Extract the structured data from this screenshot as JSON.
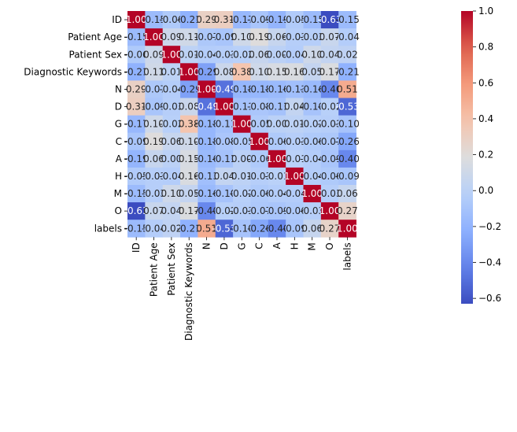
{
  "chart_data": {
    "type": "heatmap",
    "title": "",
    "xlabel": "",
    "ylabel": "",
    "rows": [
      "ID",
      "Patient Age",
      "Patient Sex",
      "Diagnostic Keywords",
      "N",
      "D",
      "G",
      "C",
      "A",
      "H",
      "M",
      "O",
      "labels"
    ],
    "cols": [
      "ID",
      "Patient Age",
      "Patient Sex",
      "Diagnostic Keywords",
      "N",
      "D",
      "G",
      "C",
      "A",
      "H",
      "M",
      "O",
      "labels"
    ],
    "values": [
      [
        1.0,
        -0.15,
        -0.06,
        -0.21,
        0.29,
        0.31,
        -0.17,
        -0.09,
        -0.19,
        -0.05,
        -0.15,
        -0.63,
        -0.15
      ],
      [
        -0.15,
        1.0,
        0.09,
        0.11,
        -0.07,
        -0.09,
        0.1,
        0.19,
        0.06,
        -0.03,
        -0.03,
        0.07,
        -0.04
      ],
      [
        -0.06,
        0.09,
        1.0,
        0.01,
        -0.04,
        -0.03,
        -0.02,
        0.06,
        -0.0,
        -0.04,
        0.1,
        0.04,
        0.02
      ],
      [
        -0.21,
        0.11,
        0.01,
        1.0,
        -0.29,
        0.08,
        0.38,
        0.1,
        0.15,
        0.16,
        0.05,
        0.17,
        -0.21
      ],
      [
        0.29,
        -0.07,
        -0.04,
        -0.29,
        1.0,
        -0.49,
        -0.18,
        -0.18,
        -0.16,
        -0.13,
        -0.16,
        -0.4,
        0.51
      ],
      [
        0.31,
        -0.09,
        -0.03,
        0.08,
        -0.49,
        1.0,
        -0.11,
        -0.08,
        -0.11,
        0.04,
        -0.1,
        -0.02,
        -0.53
      ],
      [
        -0.17,
        0.1,
        -0.02,
        0.38,
        -0.18,
        -0.11,
        1.0,
        -0.05,
        0.0,
        0.01,
        -0.02,
        -0.03,
        -0.1
      ],
      [
        -0.09,
        0.19,
        0.06,
        0.1,
        -0.18,
        -0.08,
        -0.05,
        1.0,
        -0.06,
        -0.03,
        -0.06,
        -0.07,
        -0.26
      ],
      [
        -0.19,
        0.06,
        -0.0,
        0.15,
        -0.16,
        -0.11,
        0.0,
        -0.06,
        1.0,
        -0.01,
        -0.04,
        -0.09,
        -0.4
      ],
      [
        -0.05,
        -0.03,
        -0.04,
        0.16,
        -0.13,
        0.04,
        0.01,
        -0.03,
        -0.01,
        1.0,
        -0.04,
        -0.06,
        -0.09
      ],
      [
        -0.15,
        -0.03,
        0.1,
        0.05,
        -0.16,
        -0.1,
        -0.02,
        -0.06,
        -0.04,
        -0.04,
        1.0,
        -0.03,
        0.06
      ],
      [
        -0.63,
        0.07,
        0.04,
        0.17,
        -0.4,
        -0.02,
        -0.03,
        -0.07,
        -0.09,
        -0.06,
        -0.03,
        1.0,
        0.27
      ],
      [
        -0.15,
        -0.04,
        0.02,
        -0.21,
        0.51,
        -0.53,
        -0.1,
        -0.26,
        -0.4,
        -0.09,
        0.06,
        0.27,
        1.0
      ]
    ],
    "value_format": "2 decimals",
    "colormap": "coolwarm",
    "colorbar": {
      "vmin": -0.63,
      "vmax": 1.0,
      "ticks": [
        -0.6,
        -0.4,
        -0.2,
        0.0,
        0.2,
        0.4,
        0.6,
        0.8,
        1.0
      ],
      "tick_labels": [
        "−0.6",
        "−0.4",
        "−0.2",
        "0.0",
        "0.2",
        "0.4",
        "0.6",
        "0.8",
        "1.0"
      ],
      "position": "right"
    },
    "grid": false,
    "legend": "none"
  }
}
